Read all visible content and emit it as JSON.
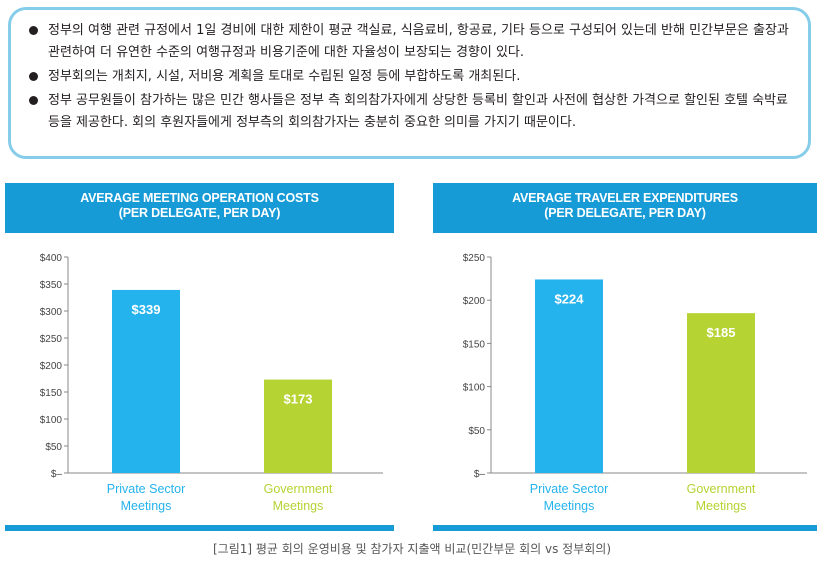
{
  "notes": [
    "정부의 여행 관련 규정에서 1일 경비에 대한 제한이 평균 객실료, 식음료비, 항공료, 기타 등으로 구성되어 있는데 반해 민간부문은 출장과 관련하여 더 유연한 수준의 여행규정과 비용기준에 대한 자율성이 보장되는 경향이 있다.",
    "정부회의는 개최지, 시설, 저비용 계획을 토대로 수립된 일정 등에 부합하도록 개최된다.",
    "정부 공무원들이 참가하는 많은 민간 행사들은 정부 측 회의참가자에게 상당한 등록비 할인과 사전에 협상한 가격으로 할인된 호텔 숙박료 등을 제공한다. 회의 후원자들에게 정부측의 회의참가자는 충분히 중요한 의미를 가지기 때문이다."
  ],
  "caption": "[그림1] 평균 회의 운영비용 및 참가자 지출액 비교(민간부문 회의 vs 정부회의)",
  "colors": {
    "header": "#169bd7",
    "private": "#25b3ed",
    "government": "#b5d333"
  },
  "chart_data": [
    {
      "type": "bar",
      "title": "AVERAGE MEETING OPERATION COSTS",
      "subtitle": "(PER DELEGATE, PER DAY)",
      "categories": [
        "Private Sector Meetings",
        "Government Meetings"
      ],
      "category_lines": [
        [
          "Private Sector",
          "Meetings"
        ],
        [
          "Government",
          "Meetings"
        ]
      ],
      "values": [
        339,
        173
      ],
      "value_labels": [
        "$339",
        "$173"
      ],
      "ylim": [
        0,
        400
      ],
      "yticks": [
        0,
        50,
        100,
        150,
        200,
        250,
        300,
        350,
        400
      ],
      "ytick_labels": [
        "$–",
        "$50",
        "$100",
        "$150",
        "$200",
        "$250",
        "$300",
        "$350",
        "$400"
      ],
      "grid": false
    },
    {
      "type": "bar",
      "title": "AVERAGE TRAVELER EXPENDITURES",
      "subtitle": "(PER DELEGATE, PER DAY)",
      "categories": [
        "Private Sector Meetings",
        "Government Meetings"
      ],
      "category_lines": [
        [
          "Private Sector",
          "Meetings"
        ],
        [
          "Government",
          "Meetings"
        ]
      ],
      "values": [
        224,
        185
      ],
      "value_labels": [
        "$224",
        "$185"
      ],
      "ylim": [
        0,
        250
      ],
      "yticks": [
        0,
        50,
        100,
        150,
        200,
        250
      ],
      "ytick_labels": [
        "$–",
        "$50",
        "$100",
        "$150",
        "$200",
        "$250"
      ],
      "grid": false
    }
  ]
}
